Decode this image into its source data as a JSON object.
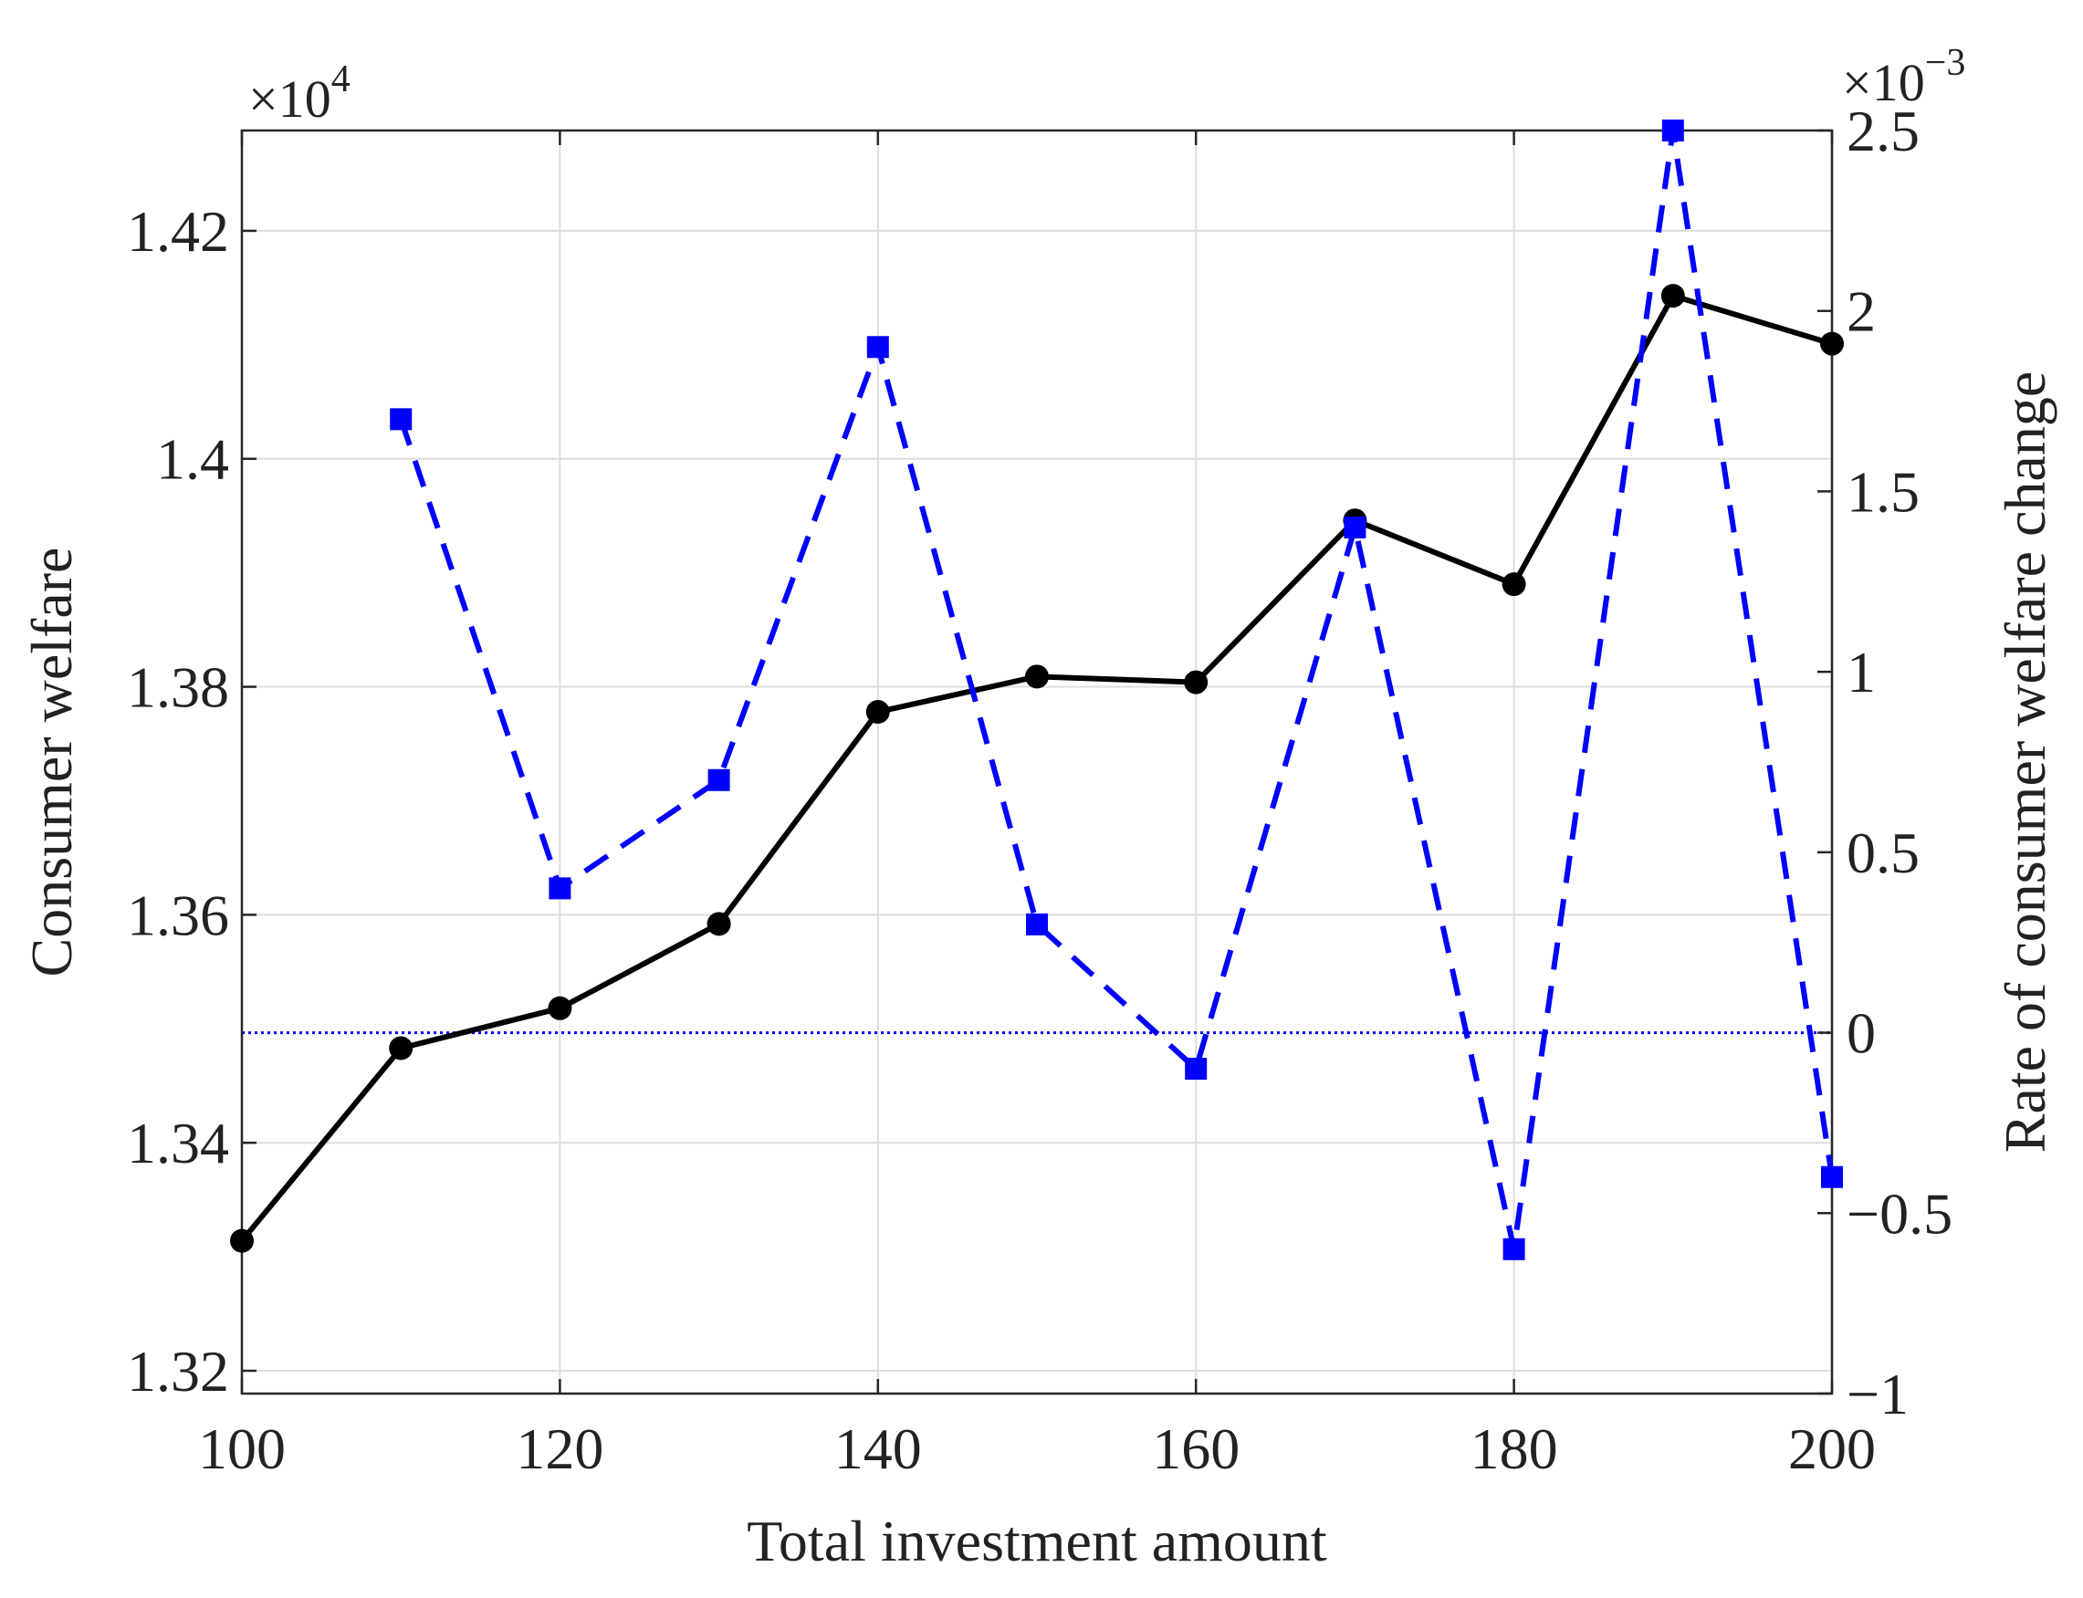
{
  "chart_data": {
    "type": "line",
    "xlabel": "Total investment amount",
    "ylabel": "Consumer welfare",
    "y2label": "Rate of consumer welfare change",
    "y_exponent": {
      "base": "×10",
      "power": "4"
    },
    "y2_exponent": {
      "base": "×10",
      "power": "−3"
    },
    "xlim": [
      100,
      200
    ],
    "ylim": [
      1.318,
      1.4288
    ],
    "y2lim": [
      -1,
      2.5
    ],
    "xticks": [
      "100",
      "120",
      "140",
      "160",
      "180",
      "200"
    ],
    "yticks": [
      "1.32",
      "1.34",
      "1.36",
      "1.38",
      "1.4",
      "1.42"
    ],
    "y2ticks": [
      "−1",
      "−0.5",
      "0",
      "0.5",
      "1",
      "1.5",
      "2",
      "2.5"
    ],
    "grid": true,
    "reference_line": {
      "axis": "right",
      "value": 0,
      "style": "dotted",
      "color": "#0000ff"
    },
    "series": [
      {
        "axis": "left",
        "color": "#000000",
        "style": "solid",
        "marker": "circle",
        "x": [
          100,
          110,
          120,
          130,
          140,
          150,
          160,
          170,
          180,
          190,
          200
        ],
        "values": [
          1.3314,
          1.3483,
          1.3518,
          1.3592,
          1.3778,
          1.3809,
          1.3804,
          1.3946,
          1.389,
          1.4143,
          1.4101
        ]
      },
      {
        "axis": "right",
        "color": "#0000ff",
        "style": "dashed",
        "marker": "square",
        "x": [
          110,
          120,
          130,
          140,
          150,
          160,
          170,
          180,
          190,
          200
        ],
        "values": [
          1.7,
          0.4,
          0.7,
          1.9,
          0.3,
          -0.1,
          1.4,
          -0.6,
          2.5,
          -0.4
        ]
      }
    ]
  }
}
